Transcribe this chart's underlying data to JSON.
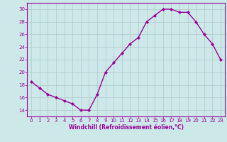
{
  "x": [
    0,
    1,
    2,
    3,
    4,
    5,
    6,
    7,
    8,
    9,
    10,
    11,
    12,
    13,
    14,
    15,
    16,
    17,
    18,
    19,
    20,
    21,
    22,
    23
  ],
  "y": [
    18.5,
    17.5,
    16.5,
    16.0,
    15.5,
    15.0,
    14.0,
    14.0,
    16.5,
    20.0,
    21.5,
    23.0,
    24.5,
    25.5,
    28.0,
    29.0,
    30.0,
    30.0,
    29.5,
    29.5,
    28.0,
    26.0,
    24.5,
    22.0
  ],
  "line_color": "#990099",
  "marker": "D",
  "marker_size": 2.0,
  "xlabel": "Windchill (Refroidissement éolien,°C)",
  "xlim": [
    -0.5,
    23.5
  ],
  "ylim": [
    13,
    31
  ],
  "yticks": [
    14,
    16,
    18,
    20,
    22,
    24,
    26,
    28,
    30
  ],
  "xticks": [
    0,
    1,
    2,
    3,
    4,
    5,
    6,
    7,
    8,
    9,
    10,
    11,
    12,
    13,
    14,
    15,
    16,
    17,
    18,
    19,
    20,
    21,
    22,
    23
  ],
  "bg_color": "#cce8e8",
  "grid_color": "#b0c8c8",
  "line_width": 1.0,
  "tick_color": "#990099",
  "xlabel_color": "#990099",
  "tick_fontsize": 5.0,
  "xlabel_fontsize": 5.5,
  "border_color": "#990099"
}
